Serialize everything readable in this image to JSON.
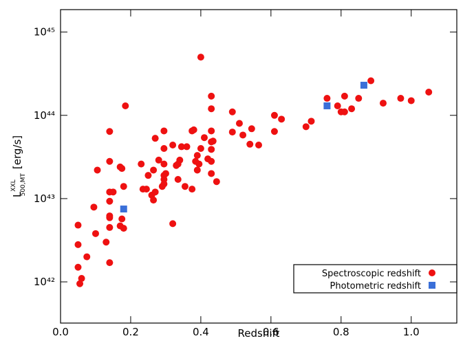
{
  "chart_data": {
    "type": "scatter",
    "x_label": "Redshift",
    "y_label": {
      "main": "L",
      "sup": "XXL",
      "sub": "500,MT",
      "unit": "[erg/s]"
    },
    "xlim": [
      0,
      1.13
    ],
    "xticks": [
      {
        "value": 0,
        "label": "0.0"
      },
      0.2,
      0.4,
      0.6,
      0.8,
      {
        "value": 1,
        "label": "1.0"
      }
    ],
    "ylim": [
      3.2e+41,
      1.86e+45
    ],
    "yticks": [
      {
        "value": 1e+42,
        "label": "10⁴²"
      },
      {
        "value": 1e+43,
        "label": "10⁴³"
      },
      {
        "value": 1e+44,
        "label": "10⁴⁴"
      },
      {
        "value": 1e+45,
        "label": "10⁴⁵"
      }
    ],
    "log_y": true,
    "legend": "lower right",
    "series": [
      {
        "name": "Spectroscopic redshift",
        "color": "#ee1111",
        "marker": "circle",
        "x": [
          0.05,
          0.05,
          0.05,
          0.06,
          0.055,
          0.075,
          0.095,
          0.1,
          0.105,
          0.13,
          0.14,
          0.14,
          0.14,
          0.14,
          0.14,
          0.14,
          0.14,
          0.15,
          0.14,
          0.17,
          0.175,
          0.18,
          0.17,
          0.175,
          0.18,
          0.185,
          0.23,
          0.235,
          0.245,
          0.25,
          0.26,
          0.265,
          0.265,
          0.27,
          0.27,
          0.28,
          0.29,
          0.295,
          0.295,
          0.295,
          0.295,
          0.295,
          0.295,
          0.3,
          0.32,
          0.32,
          0.33,
          0.335,
          0.335,
          0.34,
          0.345,
          0.355,
          0.36,
          0.375,
          0.375,
          0.38,
          0.385,
          0.39,
          0.39,
          0.395,
          0.4,
          0.4,
          0.41,
          0.42,
          0.43,
          0.43,
          0.43,
          0.43,
          0.43,
          0.43,
          0.43,
          0.435,
          0.445,
          0.49,
          0.49,
          0.51,
          0.52,
          0.54,
          0.545,
          0.565,
          0.61,
          0.61,
          0.63,
          0.7,
          0.715,
          0.76,
          0.79,
          0.8,
          0.81,
          0.81,
          0.83,
          0.85,
          0.885,
          0.92,
          0.97,
          1.0,
          1.05
        ],
        "values": [
          4.8e+42,
          2.8e+42,
          1.5e+42,
          1.1e+42,
          9.5e+41,
          2e+42,
          7.9e+42,
          3.8e+42,
          2.2e+43,
          3e+42,
          6.4e+43,
          2.8e+43,
          1.2e+43,
          9.3e+42,
          6.2e+42,
          4.5e+42,
          1.7e+42,
          1.2e+43,
          5.9e+42,
          2.4e+43,
          2.3e+43,
          1.4e+43,
          4.7e+42,
          5.7e+42,
          4.4e+42,
          1.3e+44,
          2.6e+43,
          1.3e+43,
          1.3e+43,
          1.9e+43,
          1.1e+43,
          2.2e+43,
          9.6e+42,
          1.2e+43,
          5.3e+43,
          2.9e+43,
          1.4e+43,
          6.5e+43,
          4e+43,
          2.6e+43,
          1.9e+43,
          1.7e+43,
          1.5e+43,
          2e+43,
          5e+42,
          4.4e+43,
          2.5e+43,
          2.6e+43,
          1.7e+43,
          2.9e+43,
          4.2e+43,
          1.4e+43,
          4.2e+43,
          1.3e+43,
          6.5e+43,
          6.7e+43,
          2.8e+43,
          3.3e+43,
          2.2e+43,
          2.6e+43,
          4e+43,
          5e+44,
          5.4e+43,
          3e+43,
          1.7e+44,
          1.2e+44,
          6.5e+43,
          4.8e+43,
          3.9e+43,
          2.8e+43,
          2e+43,
          4.9e+43,
          1.6e+43,
          1.1e+44,
          6.3e+43,
          8e+43,
          5.8e+43,
          4.5e+43,
          6.9e+43,
          4.4e+43,
          6.4e+43,
          1e+44,
          9e+43,
          7.3e+43,
          8.5e+43,
          1.6e+44,
          1.3e+44,
          1.1e+44,
          1.7e+44,
          1.1e+44,
          1.2e+44,
          1.6e+44,
          2.6e+44,
          1.4e+44,
          1.6e+44,
          1.5e+44,
          1.9e+44
        ]
      },
      {
        "name": "Photometric redshift",
        "color": "#3a6fd8",
        "marker": "square",
        "x": [
          0.18,
          0.76,
          0.865
        ],
        "values": [
          7.5e+42,
          1.3e+44,
          2.3e+44
        ]
      }
    ]
  }
}
